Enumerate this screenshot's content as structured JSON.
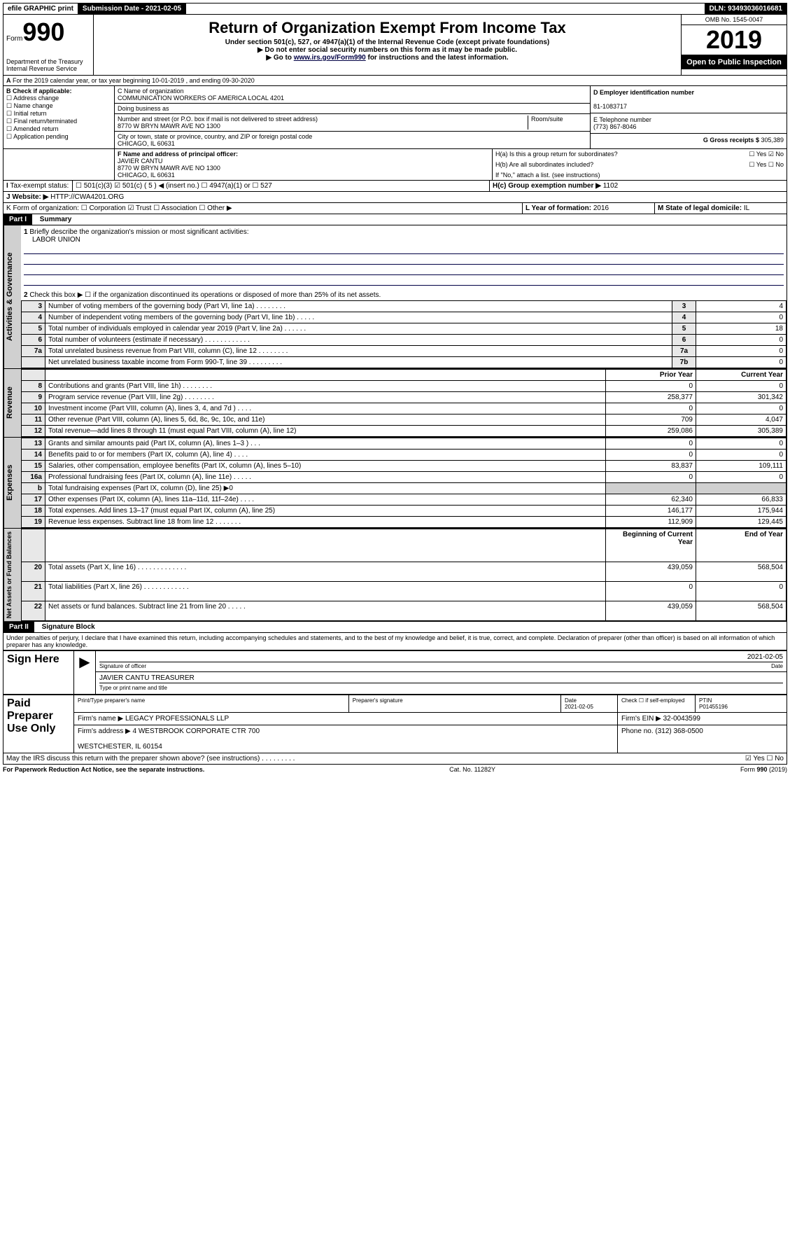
{
  "top": {
    "efile": "efile GRAPHIC print",
    "sub_date_lbl": "Submission Date - 2021-02-05",
    "dln": "DLN: 93493036016681"
  },
  "header": {
    "form": "Form",
    "num": "990",
    "title": "Return of Organization Exempt From Income Tax",
    "sub1": "Under section 501(c), 527, or 4947(a)(1) of the Internal Revenue Code (except private foundations)",
    "sub2": "▶ Do not enter social security numbers on this form as it may be made public.",
    "sub3_pre": "▶ Go to ",
    "sub3_link": "www.irs.gov/Form990",
    "sub3_post": " for instructions and the latest information.",
    "dept": "Department of the Treasury\nInternal Revenue Service",
    "omb": "OMB No. 1545-0047",
    "year": "2019",
    "open": "Open to Public Inspection"
  },
  "period": {
    "line_a": "For the 2019 calendar year, or tax year beginning 10-01-2019    , and ending 09-30-2020"
  },
  "boxB": {
    "label": "B Check if applicable:",
    "opts": [
      "Address change",
      "Name change",
      "Initial return",
      "Final return/terminated",
      "Amended return",
      "Application pending"
    ]
  },
  "boxC": {
    "name_lbl": "C Name of organization",
    "name": "COMMUNICATION WORKERS OF AMERICA LOCAL 4201",
    "dba_lbl": "Doing business as",
    "addr_lbl": "Number and street (or P.O. box if mail is not delivered to street address)",
    "room_lbl": "Room/suite",
    "addr": "8770 W BRYN MAWR AVE NO 1300",
    "city_lbl": "City or town, state or province, country, and ZIP or foreign postal code",
    "city": "CHICAGO, IL  60631"
  },
  "boxD": {
    "lbl": "D Employer identification number",
    "val": "81-1083717"
  },
  "boxE": {
    "lbl": "E Telephone number",
    "val": "(773) 867-8046"
  },
  "boxG": {
    "lbl": "G Gross receipts $ ",
    "val": "305,389"
  },
  "boxF": {
    "lbl": "F  Name and address of principal officer:",
    "name": "JAVIER CANTU",
    "addr": "8770 W BRYN MAWR AVE NO 1300\nCHICAGO, IL  60631"
  },
  "boxH": {
    "a": "H(a)  Is this a group return for subordinates?",
    "a_no": "☑ No",
    "a_yes": "☐ Yes",
    "b": "H(b)  Are all subordinates included?",
    "b_yn": "☐ Yes   ☐ No",
    "b_note": "If \"No,\" attach a list. (see instructions)",
    "c": "H(c)  Group exemption number ▶",
    "c_val": "1102"
  },
  "boxI": {
    "lbl": "Tax-exempt status:",
    "opts": "☐ 501(c)(3)   ☑ 501(c) ( 5 ) ◀ (insert no.)   ☐ 4947(a)(1) or   ☐ 527"
  },
  "boxJ": {
    "lbl": "Website: ▶",
    "val": "HTTP://CWA4201.ORG"
  },
  "boxK": {
    "lbl": "K Form of organization:  ☐ Corporation  ☑ Trust  ☐ Association  ☐ Other ▶"
  },
  "boxL": {
    "lbl": "L Year of formation: ",
    "val": "2016"
  },
  "boxM": {
    "lbl": "M State of legal domicile: ",
    "val": "IL"
  },
  "part1": {
    "hdr": "Part I",
    "title": "Summary",
    "q1": "Briefly describe the organization's mission or most significant activities:",
    "mission": "LABOR UNION",
    "q2": "Check this box ▶ ☐  if the organization discontinued its operations or disposed of more than 25% of its net assets.",
    "rows_gov": [
      {
        "n": "3",
        "lbl": "Number of voting members of the governing body (Part VI, line 1a)   .   .   .   .   .   .   .   .",
        "box": "3",
        "val": "4"
      },
      {
        "n": "4",
        "lbl": "Number of independent voting members of the governing body (Part VI, line 1b)   .   .   .   .   .",
        "box": "4",
        "val": "0"
      },
      {
        "n": "5",
        "lbl": "Total number of individuals employed in calendar year 2019 (Part V, line 2a)   .   .   .   .   .   .",
        "box": "5",
        "val": "18"
      },
      {
        "n": "6",
        "lbl": "Total number of volunteers (estimate if necessary)   .   .   .   .   .   .   .   .   .   .   .   .",
        "box": "6",
        "val": "0"
      },
      {
        "n": "7a",
        "lbl": "Total unrelated business revenue from Part VIII, column (C), line 12   .   .   .   .   .   .   .   .",
        "box": "7a",
        "val": "0"
      },
      {
        "n": "",
        "lbl": "Net unrelated business taxable income from Form 990-T, line 39   .   .   .   .   .   .   .   .   .",
        "box": "7b",
        "val": "0"
      }
    ],
    "col_hdr_prior": "Prior Year",
    "col_hdr_curr": "Current Year",
    "rows_rev": [
      {
        "n": "8",
        "lbl": "Contributions and grants (Part VIII, line 1h)   .   .   .   .   .   .   .   .",
        "p": "0",
        "c": "0"
      },
      {
        "n": "9",
        "lbl": "Program service revenue (Part VIII, line 2g)   .   .   .   .   .   .   .   .",
        "p": "258,377",
        "c": "301,342"
      },
      {
        "n": "10",
        "lbl": "Investment income (Part VIII, column (A), lines 3, 4, and 7d )   .   .   .   .",
        "p": "0",
        "c": "0"
      },
      {
        "n": "11",
        "lbl": "Other revenue (Part VIII, column (A), lines 5, 6d, 8c, 9c, 10c, and 11e)",
        "p": "709",
        "c": "4,047"
      },
      {
        "n": "12",
        "lbl": "Total revenue—add lines 8 through 11 (must equal Part VIII, column (A), line 12)",
        "p": "259,086",
        "c": "305,389"
      }
    ],
    "rows_exp": [
      {
        "n": "13",
        "lbl": "Grants and similar amounts paid (Part IX, column (A), lines 1–3 )   .   .   .",
        "p": "0",
        "c": "0"
      },
      {
        "n": "14",
        "lbl": "Benefits paid to or for members (Part IX, column (A), line 4)   .   .   .   .",
        "p": "0",
        "c": "0"
      },
      {
        "n": "15",
        "lbl": "Salaries, other compensation, employee benefits (Part IX, column (A), lines 5–10)",
        "p": "83,837",
        "c": "109,111"
      },
      {
        "n": "16a",
        "lbl": "Professional fundraising fees (Part IX, column (A), line 11e)   .   .   .   .   .",
        "p": "0",
        "c": "0"
      },
      {
        "n": "b",
        "lbl": "Total fundraising expenses (Part IX, column (D), line 25) ▶0",
        "p": "",
        "c": ""
      },
      {
        "n": "17",
        "lbl": "Other expenses (Part IX, column (A), lines 11a–11d, 11f–24e)   .   .   .   .",
        "p": "62,340",
        "c": "66,833"
      },
      {
        "n": "18",
        "lbl": "Total expenses. Add lines 13–17 (must equal Part IX, column (A), line 25)",
        "p": "146,177",
        "c": "175,944"
      },
      {
        "n": "19",
        "lbl": "Revenue less expenses. Subtract line 18 from line 12   .   .   .   .   .   .   .",
        "p": "112,909",
        "c": "129,445"
      }
    ],
    "col_hdr_beg": "Beginning of Current Year",
    "col_hdr_end": "End of Year",
    "rows_net": [
      {
        "n": "20",
        "lbl": "Total assets (Part X, line 16)   .   .   .   .   .   .   .   .   .   .   .   .   .",
        "p": "439,059",
        "c": "568,504"
      },
      {
        "n": "21",
        "lbl": "Total liabilities (Part X, line 26)   .   .   .   .   .   .   .   .   .   .   .   .",
        "p": "0",
        "c": "0"
      },
      {
        "n": "22",
        "lbl": "Net assets or fund balances. Subtract line 21 from line 20   .   .   .   .   .",
        "p": "439,059",
        "c": "568,504"
      }
    ],
    "vert_gov": "Activities & Governance",
    "vert_rev": "Revenue",
    "vert_exp": "Expenses",
    "vert_net": "Net Assets or Fund Balances"
  },
  "part2": {
    "hdr": "Part II",
    "title": "Signature Block",
    "decl": "Under penalties of perjury, I declare that I have examined this return, including accompanying schedules and statements, and to the best of my knowledge and belief, it is true, correct, and complete. Declaration of preparer (other than officer) is based on all information of which preparer has any knowledge.",
    "sign_lbl": "Sign Here",
    "sig_officer": "Signature of officer",
    "sig_date": "2021-02-05",
    "date_lbl": "Date",
    "officer_name": "JAVIER CANTU  TREASURER",
    "type_lbl": "Type or print name and title",
    "paid_lbl": "Paid Preparer Use Only",
    "prep_name_lbl": "Print/Type preparer's name",
    "prep_sig_lbl": "Preparer's signature",
    "prep_date_lbl": "Date",
    "prep_date": "2021-02-05",
    "check_lbl": "Check ☐ if self-employed",
    "ptin_lbl": "PTIN",
    "ptin": "P01455196",
    "firm_name_lbl": "Firm's name    ▶",
    "firm_name": "LEGACY PROFESSIONALS LLP",
    "firm_ein_lbl": "Firm's EIN ▶",
    "firm_ein": "32-0043599",
    "firm_addr_lbl": "Firm's address ▶",
    "firm_addr": "4 WESTBROOK CORPORATE CTR 700\n\nWESTCHESTER, IL  60154",
    "phone_lbl": "Phone no. ",
    "phone": "(312) 368-0500",
    "discuss": "May the IRS discuss this return with the preparer shown above? (see instructions)   .   .   .   .   .   .   .   .   .",
    "discuss_yn": "☑ Yes  ☐ No"
  },
  "footer": {
    "pra": "For Paperwork Reduction Act Notice, see the separate instructions.",
    "cat": "Cat. No. 11282Y",
    "form": "Form 990 (2019)"
  }
}
